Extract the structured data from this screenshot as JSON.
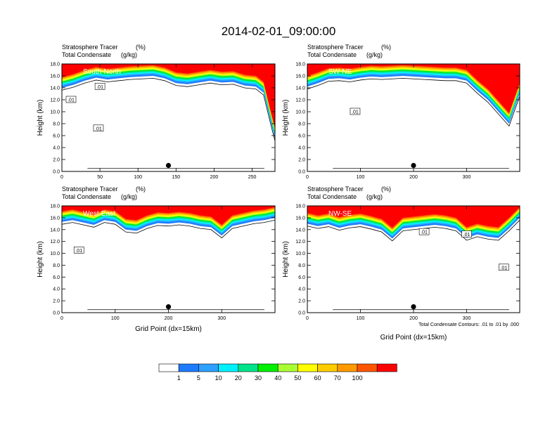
{
  "title": "2014-02-01_09:00:00",
  "panel_header": {
    "line1_label": "Stratosphere Tracer",
    "line1_unit": "(%)",
    "line2_label": "Total Condensate",
    "line2_unit": "(g/kg)"
  },
  "ylabel": "Height (km)",
  "xlabel": "Grid Point (dx=15km)",
  "contour_info": "Total Condensate Contours: .01 to .01 by .000",
  "contour_label": ".01",
  "colorbar": {
    "levels": [
      "1",
      "5",
      "10",
      "20",
      "30",
      "40",
      "50",
      "60",
      "70",
      "100"
    ],
    "colors": [
      "#ffffff",
      "#1e7bff",
      "#2ea0ff",
      "#00f0ff",
      "#00e38a",
      "#00f000",
      "#aaff33",
      "#ffff00",
      "#ffcc00",
      "#ff9900",
      "#ff5500",
      "#ff0000"
    ]
  },
  "chart_data": [
    {
      "type": "contour",
      "name": "South-North",
      "xlim": [
        0,
        280
      ],
      "xticks": [
        0,
        50,
        100,
        150,
        200,
        250
      ],
      "ylim": [
        0,
        18
      ],
      "yticks": [
        0.0,
        2.0,
        4.0,
        6.0,
        8.0,
        10.0,
        12.0,
        14.0,
        16.0,
        18.0
      ],
      "tracer_boundary": {
        "x": [
          0,
          15,
          30,
          45,
          60,
          75,
          90,
          105,
          120,
          135,
          150,
          165,
          180,
          195,
          210,
          225,
          240,
          255,
          265,
          275,
          280
        ],
        "y": [
          14.0,
          14.5,
          15.2,
          15.7,
          15.4,
          15.6,
          15.8,
          15.9,
          16.0,
          15.6,
          14.8,
          14.6,
          14.9,
          15.2,
          14.9,
          15.0,
          14.4,
          14.2,
          13.2,
          8.0,
          5.5
        ]
      },
      "marker": {
        "x": 140,
        "y": 1.0
      },
      "contour_label_pos": [
        {
          "x": 12,
          "y": 12.0
        },
        {
          "x": 50,
          "y": 14.2
        },
        {
          "x": 48,
          "y": 7.2
        }
      ]
    },
    {
      "type": "contour",
      "name": "SW-NE",
      "xlim": [
        0,
        400
      ],
      "xticks": [
        0,
        100,
        200,
        300
      ],
      "ylim": [
        0,
        18
      ],
      "yticks": [
        0.0,
        2.0,
        4.0,
        6.0,
        8.0,
        10.0,
        12.0,
        14.0,
        16.0,
        18.0
      ],
      "tracer_boundary": {
        "x": [
          0,
          20,
          40,
          60,
          80,
          100,
          120,
          140,
          160,
          180,
          200,
          220,
          240,
          260,
          280,
          300,
          320,
          340,
          360,
          380,
          400
        ],
        "y": [
          14.2,
          14.8,
          15.5,
          15.6,
          15.4,
          15.7,
          15.9,
          15.8,
          15.9,
          16.0,
          15.9,
          15.8,
          15.7,
          15.6,
          15.6,
          15.2,
          13.5,
          12.0,
          10.0,
          8.0,
          13.0
        ]
      },
      "marker": {
        "x": 200,
        "y": 1.0
      },
      "contour_label_pos": [
        {
          "x": 90,
          "y": 10.0
        }
      ]
    },
    {
      "type": "contour",
      "name": "West-East",
      "xlim": [
        0,
        400
      ],
      "xticks": [
        0,
        100,
        200,
        300
      ],
      "ylim": [
        0,
        18
      ],
      "yticks": [
        0.0,
        2.0,
        4.0,
        6.0,
        8.0,
        10.0,
        12.0,
        14.0,
        16.0,
        18.0
      ],
      "tracer_boundary": {
        "x": [
          0,
          20,
          40,
          60,
          80,
          100,
          120,
          140,
          160,
          180,
          200,
          220,
          240,
          260,
          280,
          300,
          320,
          340,
          360,
          380,
          400
        ],
        "y": [
          15.3,
          15.6,
          15.2,
          14.8,
          15.6,
          15.3,
          14.0,
          13.8,
          14.6,
          15.1,
          15.0,
          15.2,
          15.0,
          14.6,
          14.4,
          13.0,
          14.6,
          15.0,
          15.4,
          15.6,
          16.0
        ]
      },
      "marker": {
        "x": 200,
        "y": 1.0
      },
      "contour_label_pos": [
        {
          "x": 32,
          "y": 10.5
        }
      ]
    },
    {
      "type": "contour",
      "name": "NW-SE",
      "xlim": [
        0,
        400
      ],
      "xticks": [
        0,
        100,
        200,
        300
      ],
      "ylim": [
        0,
        18
      ],
      "yticks": [
        0.0,
        2.0,
        4.0,
        6.0,
        8.0,
        10.0,
        12.0,
        14.0,
        16.0,
        18.0
      ],
      "tracer_boundary": {
        "x": [
          0,
          20,
          40,
          60,
          80,
          100,
          120,
          140,
          160,
          180,
          200,
          220,
          240,
          260,
          280,
          300,
          320,
          340,
          360,
          380,
          400
        ],
        "y": [
          15.0,
          14.6,
          14.9,
          14.3,
          14.7,
          14.9,
          14.5,
          14.0,
          12.5,
          14.2,
          14.4,
          14.6,
          14.8,
          14.6,
          14.2,
          12.6,
          13.2,
          12.8,
          12.6,
          14.2,
          16.0
        ]
      },
      "marker": {
        "x": 200,
        "y": 1.0
      },
      "contour_label_pos": [
        {
          "x": 220,
          "y": 13.6
        },
        {
          "x": 300,
          "y": 13.2
        },
        {
          "x": 370,
          "y": 7.6
        }
      ]
    }
  ]
}
